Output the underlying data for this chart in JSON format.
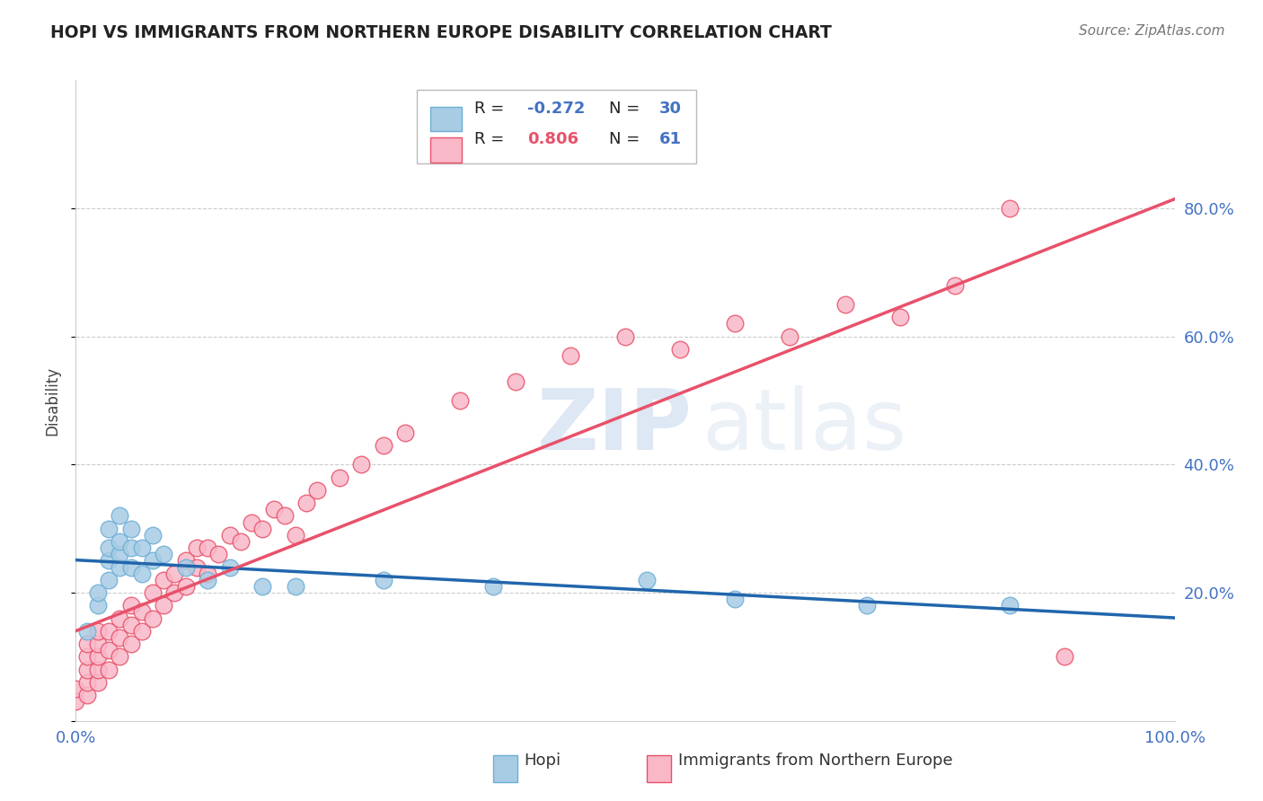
{
  "title": "HOPI VS IMMIGRANTS FROM NORTHERN EUROPE DISABILITY CORRELATION CHART",
  "source": "Source: ZipAtlas.com",
  "ylabel": "Disability",
  "watermark_zip": "ZIP",
  "watermark_atlas": "atlas",
  "hopi_R": -0.272,
  "hopi_N": 30,
  "imm_R": 0.806,
  "imm_N": 61,
  "hopi_scatter_face": "#a8cce4",
  "hopi_scatter_edge": "#6baed6",
  "imm_scatter_face": "#f9b8c8",
  "imm_scatter_edge": "#e8516a",
  "trendline_hopi_color": "#2166ac",
  "trendline_imm_color": "#e8516a",
  "xlim": [
    0.0,
    1.0
  ],
  "ylim": [
    0.0,
    1.0
  ],
  "background_color": "#ffffff",
  "grid_color": "#cccccc",
  "title_color": "#222222",
  "axis_color": "#4472c4",
  "legend_color_hopi": "#4472c4",
  "legend_color_imm": "#e8516a",
  "hopi_x": [
    0.01,
    0.02,
    0.02,
    0.03,
    0.03,
    0.03,
    0.03,
    0.04,
    0.04,
    0.04,
    0.04,
    0.05,
    0.05,
    0.05,
    0.06,
    0.06,
    0.07,
    0.07,
    0.08,
    0.1,
    0.12,
    0.14,
    0.17,
    0.2,
    0.28,
    0.38,
    0.52,
    0.6,
    0.72,
    0.85
  ],
  "hopi_y": [
    0.14,
    0.18,
    0.2,
    0.22,
    0.25,
    0.27,
    0.3,
    0.24,
    0.26,
    0.28,
    0.32,
    0.24,
    0.27,
    0.3,
    0.23,
    0.27,
    0.25,
    0.29,
    0.26,
    0.24,
    0.22,
    0.24,
    0.21,
    0.21,
    0.22,
    0.21,
    0.22,
    0.19,
    0.18,
    0.18
  ],
  "imm_x": [
    0.0,
    0.0,
    0.01,
    0.01,
    0.01,
    0.01,
    0.01,
    0.02,
    0.02,
    0.02,
    0.02,
    0.02,
    0.03,
    0.03,
    0.03,
    0.04,
    0.04,
    0.04,
    0.05,
    0.05,
    0.05,
    0.06,
    0.06,
    0.07,
    0.07,
    0.08,
    0.08,
    0.09,
    0.09,
    0.1,
    0.1,
    0.11,
    0.11,
    0.12,
    0.12,
    0.13,
    0.14,
    0.15,
    0.16,
    0.17,
    0.18,
    0.19,
    0.2,
    0.21,
    0.22,
    0.24,
    0.26,
    0.28,
    0.3,
    0.35,
    0.4,
    0.45,
    0.5,
    0.55,
    0.6,
    0.65,
    0.7,
    0.75,
    0.8,
    0.85,
    0.9
  ],
  "imm_y": [
    0.03,
    0.05,
    0.04,
    0.06,
    0.08,
    0.1,
    0.12,
    0.06,
    0.08,
    0.1,
    0.12,
    0.14,
    0.08,
    0.11,
    0.14,
    0.1,
    0.13,
    0.16,
    0.12,
    0.15,
    0.18,
    0.14,
    0.17,
    0.16,
    0.2,
    0.18,
    0.22,
    0.2,
    0.23,
    0.21,
    0.25,
    0.24,
    0.27,
    0.23,
    0.27,
    0.26,
    0.29,
    0.28,
    0.31,
    0.3,
    0.33,
    0.32,
    0.29,
    0.34,
    0.36,
    0.38,
    0.4,
    0.43,
    0.45,
    0.5,
    0.53,
    0.57,
    0.6,
    0.58,
    0.62,
    0.6,
    0.65,
    0.63,
    0.68,
    0.8,
    0.1
  ]
}
